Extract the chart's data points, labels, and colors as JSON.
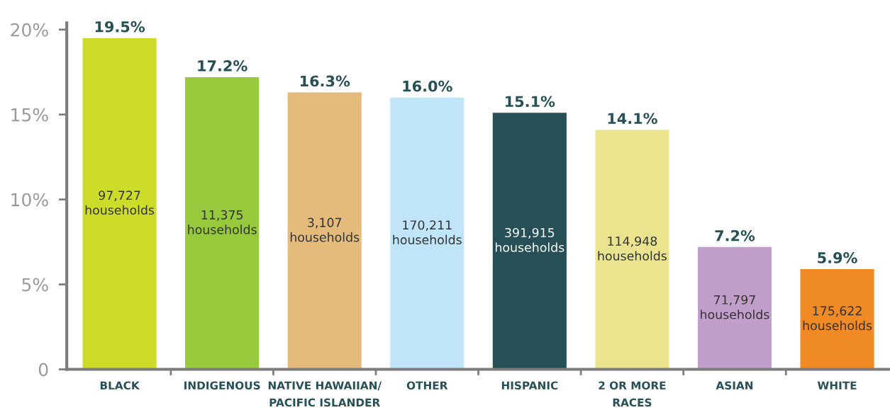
{
  "chart_data": {
    "type": "bar",
    "categories": [
      "BLACK",
      "INDIGENOUS",
      "NATIVE HAWAIIAN/\nPACIFIC ISLANDER",
      "OTHER",
      "HISPANIC",
      "2 OR MORE\nRACES",
      "ASIAN",
      "WHITE"
    ],
    "values": [
      19.5,
      17.2,
      16.3,
      16.0,
      15.1,
      14.1,
      7.2,
      5.9
    ],
    "colors": [
      "#cddc29",
      "#97c93d",
      "#e5bb7b",
      "#c0e5f8",
      "#264f56",
      "#ebe48f",
      "#c09fcb",
      "#f08a24"
    ],
    "value_labels": [
      "19.5%",
      "17.2%",
      "16.3%",
      "16.0%",
      "15.1%",
      "14.1%",
      "7.2%",
      "5.9%"
    ],
    "annotations": [
      "97,727\nhouseholds",
      "11,375\nhouseholds",
      "3,107\nhouseholds",
      "170,211\nhouseholds",
      "391,915\nhouseholds",
      "114,948\nhouseholds",
      "71,797\nhouseholds",
      "175,622\nhouseholds"
    ],
    "ylim": [
      0,
      20.4
    ],
    "yticks": [
      0,
      {
        "value": 5,
        "label": "5%"
      },
      {
        "value": 10,
        "label": "10%"
      },
      {
        "value": 15,
        "label": "15%"
      },
      {
        "value": 20,
        "label": "20%"
      }
    ],
    "grid": false,
    "legend": false
  }
}
